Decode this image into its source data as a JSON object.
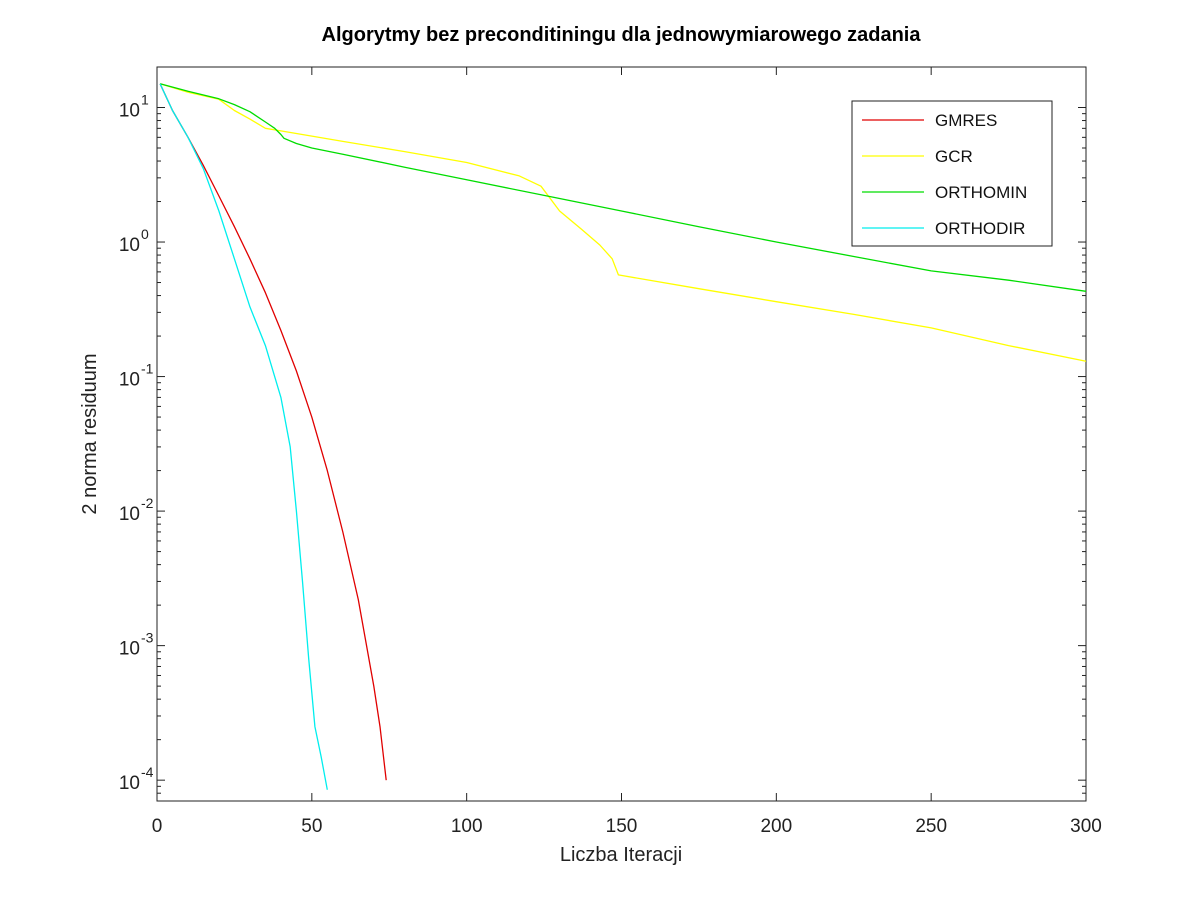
{
  "chart_data": {
    "type": "line",
    "title": "Algorytmy bez preconditiningu dla jednowymiarowego zadania",
    "xlabel": "Liczba Iteracji",
    "ylabel": "2 norma residuum",
    "xlim": [
      0,
      300
    ],
    "ylim": [
      7e-05,
      20
    ],
    "yscale": "log",
    "grid": false,
    "legend_position": "top-right",
    "x_ticks": [
      "0",
      "50",
      "100",
      "150",
      "200",
      "250",
      "300"
    ],
    "y_ticks": [
      {
        "value": 10,
        "base": "10",
        "exp": "1"
      },
      {
        "value": 1,
        "base": "10",
        "exp": "0"
      },
      {
        "value": 0.1,
        "base": "10",
        "exp": "-1"
      },
      {
        "value": 0.01,
        "base": "10",
        "exp": "-2"
      },
      {
        "value": 0.001,
        "base": "10",
        "exp": "-3"
      },
      {
        "value": 0.0001,
        "base": "10",
        "exp": "-4"
      }
    ],
    "series": [
      {
        "name": "GMRES",
        "color": "#e00000",
        "x": [
          1,
          5,
          10,
          15,
          20,
          25,
          30,
          35,
          40,
          45,
          50,
          55,
          60,
          65,
          70,
          72,
          74
        ],
        "y": [
          15,
          9.5,
          6.0,
          3.7,
          2.2,
          1.3,
          0.75,
          0.42,
          0.22,
          0.11,
          0.05,
          0.02,
          0.007,
          0.0022,
          0.0005,
          0.00025,
          0.0001
        ]
      },
      {
        "name": "GCR",
        "color": "#ffff00",
        "x": [
          1,
          10,
          20,
          25,
          30,
          35,
          40,
          60,
          80,
          100,
          117,
          124,
          130,
          137,
          143,
          147,
          149,
          175,
          200,
          225,
          250,
          275,
          300
        ],
        "y": [
          15,
          13,
          11.5,
          9.5,
          8.2,
          7.0,
          6.7,
          5.6,
          4.7,
          3.9,
          3.1,
          2.6,
          1.7,
          1.25,
          0.95,
          0.75,
          0.57,
          0.45,
          0.36,
          0.29,
          0.23,
          0.17,
          0.13
        ]
      },
      {
        "name": "ORTHOMIN",
        "color": "#00dd00",
        "x": [
          1,
          10,
          20,
          25,
          30,
          35,
          38,
          40,
          41,
          45,
          50,
          60,
          80,
          100,
          128,
          150,
          175,
          200,
          225,
          250,
          275,
          300
        ],
        "y": [
          15,
          13.2,
          11.6,
          10.5,
          9.3,
          7.8,
          7.0,
          6.3,
          5.9,
          5.4,
          5.0,
          4.5,
          3.6,
          2.9,
          2.15,
          1.7,
          1.3,
          1.0,
          0.78,
          0.61,
          0.52,
          0.43
        ]
      },
      {
        "name": "ORTHODIR",
        "color": "#00eeee",
        "x": [
          1,
          5,
          10,
          15,
          20,
          25,
          30,
          35,
          40,
          43,
          45,
          47,
          49,
          51,
          53,
          55
        ],
        "y": [
          15,
          9.5,
          6.0,
          3.5,
          1.7,
          0.75,
          0.33,
          0.17,
          0.07,
          0.03,
          0.01,
          0.003,
          0.0008,
          0.00025,
          0.00015,
          8.5e-05
        ]
      }
    ]
  }
}
